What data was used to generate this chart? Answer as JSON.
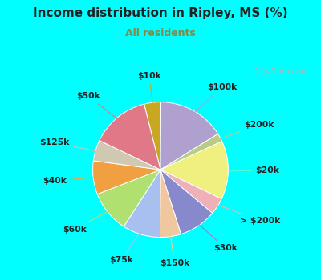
{
  "title": "Income distribution in Ripley, MS (%)",
  "subtitle": "All residents",
  "title_color": "#222222",
  "subtitle_color": "#888844",
  "bg_cyan": "#00ffff",
  "bg_inner": "#ddf0e8",
  "slices": [
    {
      "label": "$10k",
      "value": 4,
      "color": "#c8a820"
    },
    {
      "label": "$100k",
      "value": 16,
      "color": "#b0a0d0"
    },
    {
      "label": "$200k",
      "value": 2,
      "color": "#b8cc88"
    },
    {
      "label": "$20k",
      "value": 14,
      "color": "#f0f080"
    },
    {
      "label": "> $200k",
      "value": 4,
      "color": "#f0b0b8"
    },
    {
      "label": "$30k",
      "value": 9,
      "color": "#8888cc"
    },
    {
      "label": "$150k",
      "value": 5,
      "color": "#f0c8a0"
    },
    {
      "label": "$75k",
      "value": 9,
      "color": "#a8c0f0"
    },
    {
      "label": "$60k",
      "value": 10,
      "color": "#b0e070"
    },
    {
      "label": "$40k",
      "value": 8,
      "color": "#f0a040"
    },
    {
      "label": "$125k",
      "value": 5,
      "color": "#d0c8b0"
    },
    {
      "label": "$50k",
      "value": 14,
      "color": "#e07888"
    }
  ],
  "label_fontsize": 7.8,
  "label_color": "#222222",
  "start_angle": 104,
  "watermark_text": "ⓘ City-Data.com",
  "watermark_color": "#b0b8b8"
}
